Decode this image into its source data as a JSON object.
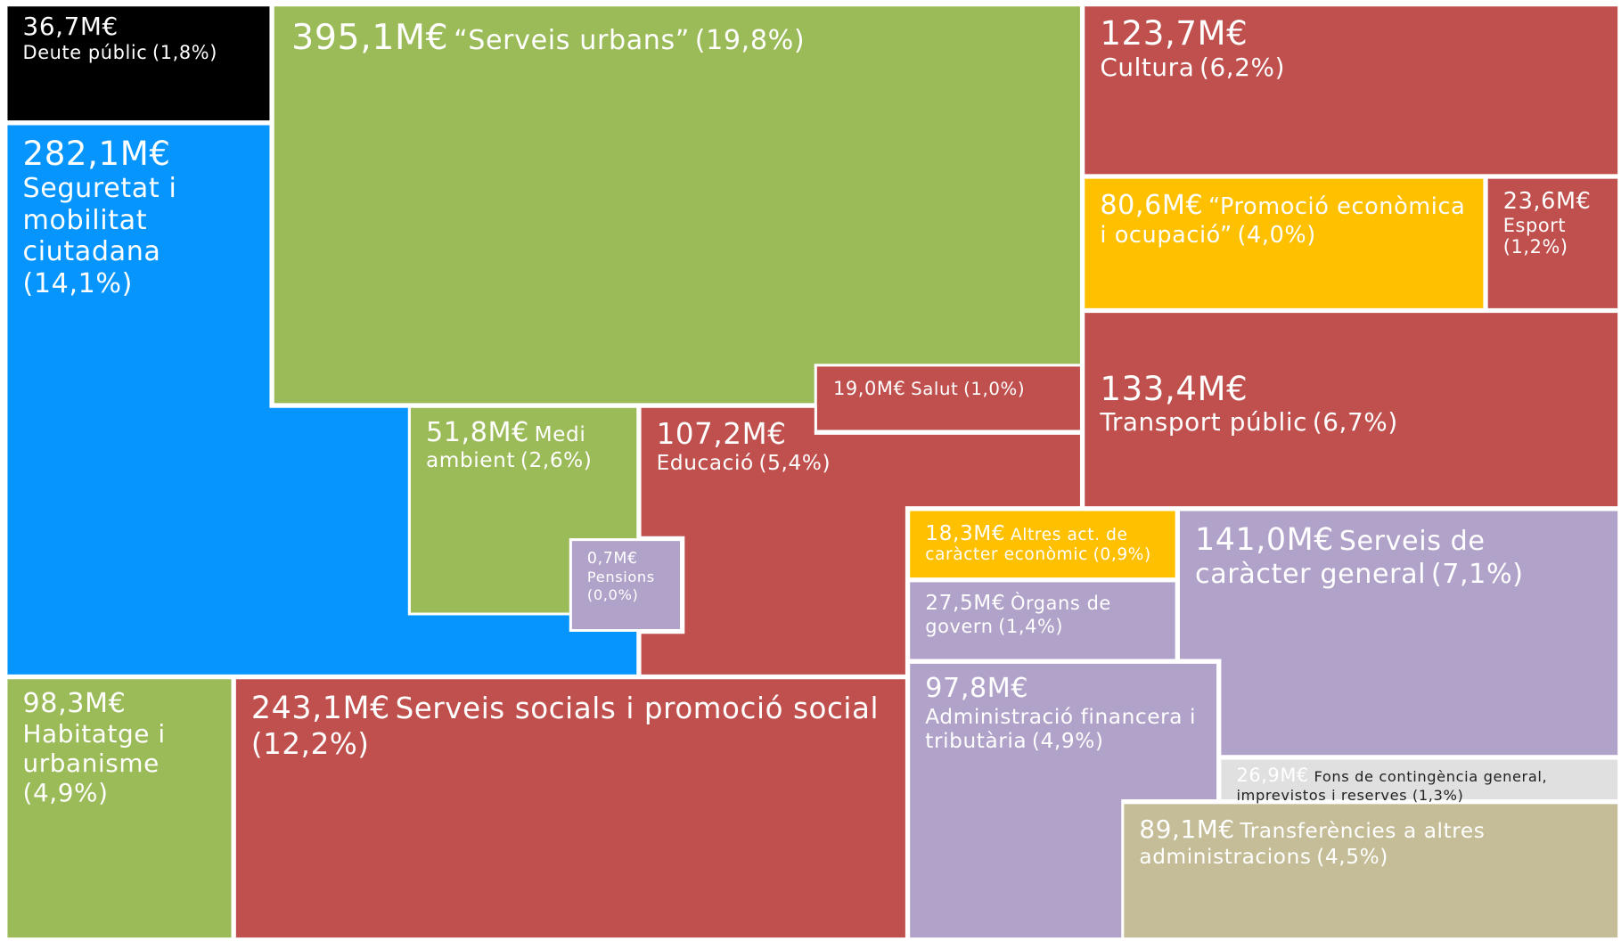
{
  "chart_data": {
    "type": "treemap",
    "items": [
      {
        "name": "Deute públic",
        "value": 36.7,
        "value_label": "36,7M€",
        "share": 1.8,
        "share_label": "(1,8%)",
        "color": "#000000"
      },
      {
        "name": "“Serveis urbans”",
        "value": 395.1,
        "value_label": "395,1M€",
        "share": 19.8,
        "share_label": "(19,8%)",
        "color": "#9bbb59"
      },
      {
        "name": "Cultura",
        "value": 123.7,
        "value_label": "123,7M€",
        "share": 6.2,
        "share_label": "(6,2%)",
        "color": "#c0504d"
      },
      {
        "name": "“Promoció econòmica i ocupació”",
        "value": 80.6,
        "value_label": "80,6M€",
        "share": 4,
        "share_label": "(4,0%)",
        "color": "#ffc000"
      },
      {
        "name": "Esport",
        "value": 23.6,
        "value_label": "23,6M€",
        "share": 1.2,
        "share_label": "(1,2%)",
        "color": "#c0504d"
      },
      {
        "name": "Seguretat i mobilitat ciutadana",
        "value": 282.1,
        "value_label": "282,1M€",
        "share": 14.1,
        "share_label": "(14,1%)",
        "color": "#0595fd"
      },
      {
        "name": "Salut",
        "value": 19,
        "value_label": "19,0M€",
        "share": 1,
        "share_label": "(1,0%)",
        "color": "#c0504d"
      },
      {
        "name": "Medi ambient",
        "value": 51.8,
        "value_label": "51,8M€",
        "share": 2.6,
        "share_label": "(2,6%)",
        "color": "#9bbb59"
      },
      {
        "name": "Pensions",
        "value": 0.7,
        "value_label": "0,7M€",
        "share": 0,
        "share_label": "(0,0%)",
        "color": "#b1a2c9"
      },
      {
        "name": "Educació",
        "value": 107.2,
        "value_label": "107,2M€",
        "share": 5.4,
        "share_label": "(5,4%)",
        "color": "#c0504d"
      },
      {
        "name": "Transport públic",
        "value": 133.4,
        "value_label": "133,4M€",
        "share": 6.7,
        "share_label": "(6,7%)",
        "color": "#c0504d"
      },
      {
        "name": "Altres act. de caràcter econòmic",
        "value": 18.3,
        "value_label": "18,3M€",
        "share": 0.9,
        "share_label": "(0,9%)",
        "color": "#ffc000"
      },
      {
        "name": "Serveis de caràcter general",
        "value": 141,
        "value_label": "141,0M€",
        "share": 7.1,
        "share_label": "(7,1%)",
        "color": "#b1a2c9"
      },
      {
        "name": "Òrgans de govern",
        "value": 27.5,
        "value_label": "27,5M€",
        "share": 1.4,
        "share_label": "(1,4%)",
        "color": "#b1a2c9"
      },
      {
        "name": "Habitatge i urbanisme",
        "value": 98.3,
        "value_label": "98,3M€",
        "share": 4.9,
        "share_label": "(4,9%)",
        "color": "#9bbb59"
      },
      {
        "name": "Serveis socials i promoció social",
        "value": 243.1,
        "value_label": "243,1M€",
        "share": 12.2,
        "share_label": "(12,2%)",
        "color": "#c0504d"
      },
      {
        "name": "Administració financera i tributària",
        "value": 97.8,
        "value_label": "97,8M€",
        "share": 4.9,
        "share_label": "(4,9%)",
        "color": "#b1a2c9"
      },
      {
        "name": "Fons de contingència general, imprevistos i reserves",
        "value": 26.9,
        "value_label": "26,9M€",
        "share": 1.3,
        "share_label": "(1,3%)",
        "color": "#e0e0e0"
      },
      {
        "name": "Transferències a altres administracions",
        "value": 89.1,
        "value_label": "89,1M€",
        "share": 4.5,
        "share_label": "(4,5%)",
        "color": "#c4bd97"
      }
    ]
  }
}
